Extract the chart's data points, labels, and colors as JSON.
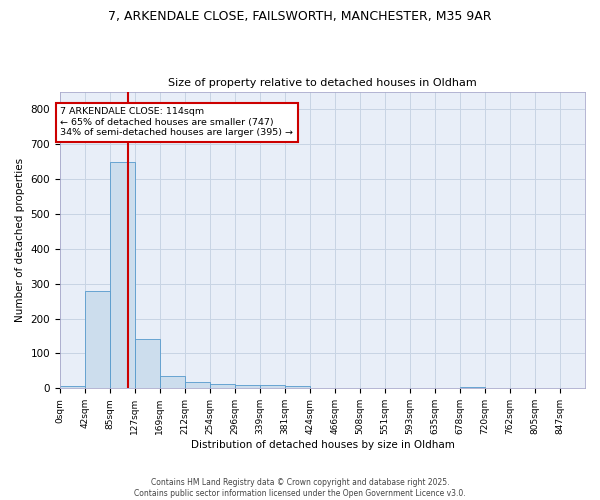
{
  "title_line1": "7, ARKENDALE CLOSE, FAILSWORTH, MANCHESTER, M35 9AR",
  "title_line2": "Size of property relative to detached houses in Oldham",
  "xlabel": "Distribution of detached houses by size in Oldham",
  "ylabel": "Number of detached properties",
  "footer_line1": "Contains HM Land Registry data © Crown copyright and database right 2025.",
  "footer_line2": "Contains public sector information licensed under the Open Government Licence v3.0.",
  "bin_labels": [
    "0sqm",
    "42sqm",
    "85sqm",
    "127sqm",
    "169sqm",
    "212sqm",
    "254sqm",
    "296sqm",
    "339sqm",
    "381sqm",
    "424sqm",
    "466sqm",
    "508sqm",
    "551sqm",
    "593sqm",
    "635sqm",
    "678sqm",
    "720sqm",
    "762sqm",
    "805sqm",
    "847sqm"
  ],
  "bar_values": [
    8,
    278,
    648,
    142,
    34,
    18,
    12,
    11,
    10,
    8,
    0,
    0,
    0,
    0,
    0,
    0,
    5,
    0,
    0,
    0,
    0
  ],
  "bar_color": "#ccdded",
  "bar_edge_color": "#5599cc",
  "grid_color": "#c8d4e4",
  "background_color": "#e8eef8",
  "vline_color": "#cc0000",
  "annotation_text": "7 ARKENDALE CLOSE: 114sqm\n← 65% of detached houses are smaller (747)\n34% of semi-detached houses are larger (395) →",
  "annotation_box_color": "#cc0000",
  "ylim": [
    0,
    850
  ],
  "bin_width": 42,
  "property_size": 114,
  "yticks": [
    0,
    100,
    200,
    300,
    400,
    500,
    600,
    700,
    800
  ]
}
